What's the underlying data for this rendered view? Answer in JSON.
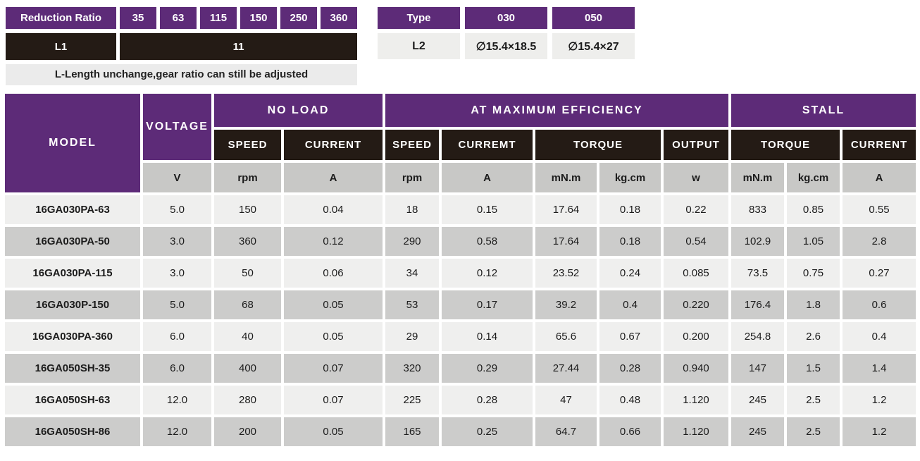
{
  "colors": {
    "purple": "#5d2b78",
    "black": "#241b15",
    "units_gray": "#c8c8c6",
    "row_light": "#efefee",
    "row_dark": "#cccccb",
    "note_bg": "#ebebeb",
    "l2_row_bg": "#eeeeec",
    "text_dark": "#1c1c1c"
  },
  "reduction_table": {
    "header_label": "Reduction Ratio",
    "ratios": [
      "35",
      "63",
      "115",
      "150",
      "250",
      "360"
    ],
    "l1_label": "L1",
    "l1_value": "11"
  },
  "type_table": {
    "header_label": "Type",
    "type_030": "030",
    "type_050": "050",
    "l2_label": "L2",
    "l2_value_030": "∅15.4×18.5",
    "l2_value_050": "∅15.4×27"
  },
  "note": "L-Length unchange,gear ratio can still be adjusted",
  "main_table": {
    "model_header": "MODEL",
    "voltage_header": "VOLTAGE",
    "groups": {
      "no_load": "NO LOAD",
      "max_efficiency": "AT MAXIMUM EFFICIENCY",
      "stall": "STALL"
    },
    "sub_headers": [
      "SPEED",
      "CURRENT",
      "SPEED",
      "CURREMT",
      "TORQUE",
      "OUTPUT",
      "TORQUE",
      "CURRENT"
    ],
    "units": [
      "V",
      "rpm",
      "A",
      "rpm",
      "A",
      "mN.m",
      "kg.cm",
      "w",
      "mN.m",
      "kg.cm",
      "A"
    ],
    "rows": [
      {
        "model": "16GA030PA-63",
        "values": [
          "5.0",
          "150",
          "0.04",
          "18",
          "0.15",
          "17.64",
          "0.18",
          "0.22",
          "833",
          "0.85",
          "0.55"
        ]
      },
      {
        "model": "16GA030PA-50",
        "values": [
          "3.0",
          "360",
          "0.12",
          "290",
          "0.58",
          "17.64",
          "0.18",
          "0.54",
          "102.9",
          "1.05",
          "2.8"
        ]
      },
      {
        "model": "16GA030PA-115",
        "values": [
          "3.0",
          "50",
          "0.06",
          "34",
          "0.12",
          "23.52",
          "0.24",
          "0.085",
          "73.5",
          "0.75",
          "0.27"
        ]
      },
      {
        "model": "16GA030P-150",
        "values": [
          "5.0",
          "68",
          "0.05",
          "53",
          "0.17",
          "39.2",
          "0.4",
          "0.220",
          "176.4",
          "1.8",
          "0.6"
        ]
      },
      {
        "model": "16GA030PA-360",
        "values": [
          "6.0",
          "40",
          "0.05",
          "29",
          "0.14",
          "65.6",
          "0.67",
          "0.200",
          "254.8",
          "2.6",
          "0.4"
        ]
      },
      {
        "model": "16GA050SH-35",
        "values": [
          "6.0",
          "400",
          "0.07",
          "320",
          "0.29",
          "27.44",
          "0.28",
          "0.940",
          "147",
          "1.5",
          "1.4"
        ]
      },
      {
        "model": "16GA050SH-63",
        "values": [
          "12.0",
          "280",
          "0.07",
          "225",
          "0.28",
          "47",
          "0.48",
          "1.120",
          "245",
          "2.5",
          "1.2"
        ]
      },
      {
        "model": "16GA050SH-86",
        "values": [
          "12.0",
          "200",
          "0.05",
          "165",
          "0.25",
          "64.7",
          "0.66",
          "1.120",
          "245",
          "2.5",
          "1.2"
        ]
      }
    ]
  }
}
